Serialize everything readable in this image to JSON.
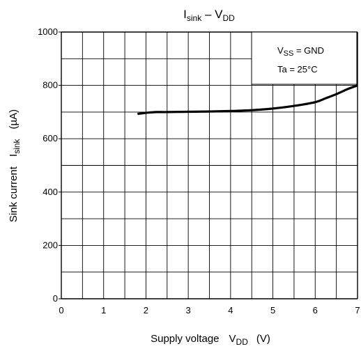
{
  "chart_data": {
    "type": "line",
    "title": {
      "main": "I",
      "main_sub": "sink",
      "dash": " – V",
      "dash_sub": "DD"
    },
    "xlabel": {
      "prefix": "Supply voltage",
      "var": "V",
      "var_sub": "DD",
      "unit": "(V)"
    },
    "ylabel": {
      "prefix": "Sink current",
      "var": "I",
      "var_sub": "sink",
      "unit": "(µA)"
    },
    "xlim": [
      0,
      7
    ],
    "ylim": [
      0,
      1000
    ],
    "x_ticks": [
      "0",
      "1",
      "2",
      "3",
      "4",
      "5",
      "6",
      "7"
    ],
    "y_ticks": [
      "0",
      "200",
      "400",
      "600",
      "800",
      "1000"
    ],
    "grid": true,
    "conditions": {
      "vss_var": "V",
      "vss_sub": "SS",
      "vss_text": " = GND",
      "ta_text": "Ta = 25°C"
    },
    "series": [
      {
        "x": [
          1.8,
          2.0,
          2.25,
          2.5,
          3.0,
          3.5,
          4.0,
          4.5,
          5.0,
          5.5,
          6.0,
          6.25,
          6.5,
          6.75,
          7.0
        ],
        "y": [
          693,
          697,
          700,
          700,
          701,
          702,
          704,
          707,
          713,
          723,
          737,
          752,
          767,
          785,
          800
        ]
      }
    ]
  }
}
